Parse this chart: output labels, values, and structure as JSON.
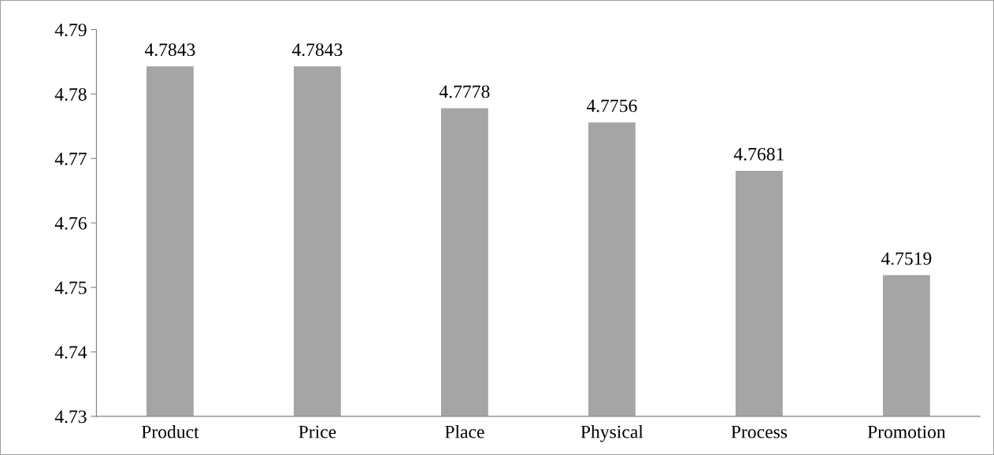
{
  "chart_data": {
    "type": "bar",
    "categories": [
      "Product",
      "Price",
      "Place",
      "Physical",
      "Process",
      "Promotion"
    ],
    "values": [
      4.7843,
      4.7843,
      4.7778,
      4.7756,
      4.7681,
      4.7519
    ],
    "color": "#a5a5a5",
    "ylim": [
      4.73,
      4.79
    ],
    "yticks": [
      4.73,
      4.74,
      4.75,
      4.76,
      4.77,
      4.78,
      4.79
    ],
    "data_labels": true,
    "grid": false,
    "legend": false
  }
}
